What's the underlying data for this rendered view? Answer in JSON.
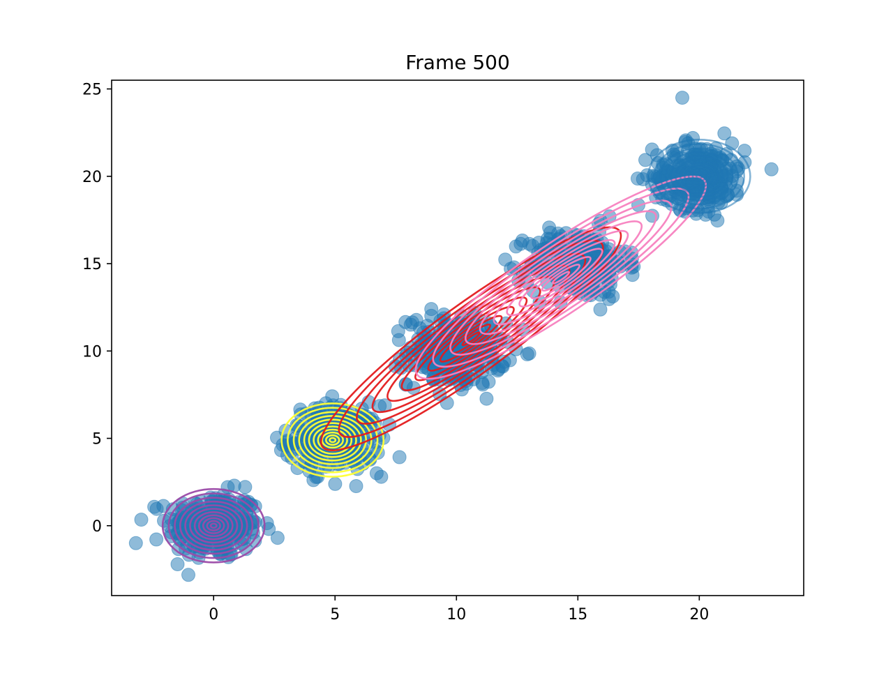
{
  "chart_data": {
    "type": "scatter",
    "title": "Frame 500",
    "xlabel": "",
    "ylabel": "",
    "xlim": [
      -4.2,
      24.3
    ],
    "ylim": [
      -4.0,
      25.5
    ],
    "xticks": [
      0,
      5,
      10,
      15,
      20
    ],
    "yticks": [
      0,
      5,
      10,
      15,
      20,
      25
    ],
    "grid": false,
    "legend": "none",
    "point_color": "#1f77b4",
    "point_alpha": 0.5,
    "clusters": [
      {
        "center": [
          0,
          0
        ],
        "spread": 0.95,
        "count": 260
      },
      {
        "center": [
          5,
          5
        ],
        "spread": 0.95,
        "count": 260
      },
      {
        "center": [
          10,
          10
        ],
        "spread": 1.0,
        "count": 260
      },
      {
        "center": [
          15,
          15
        ],
        "spread": 1.0,
        "count": 260
      },
      {
        "center": [
          20,
          20
        ],
        "spread": 0.95,
        "count": 260
      }
    ],
    "outliers": [
      [
        19.3,
        24.5
      ],
      [
        -3.2,
        -1.0
      ],
      [
        8.5,
        11.3
      ],
      [
        6.9,
        2.8
      ]
    ],
    "gaussian_components": [
      {
        "color": "#9b4aa8",
        "mean": [
          0,
          0
        ],
        "sd_major": 1.0,
        "sd_minor": 1.0,
        "angle_deg": 0
      },
      {
        "color": "#ffff33",
        "mean": [
          4.9,
          4.9
        ],
        "sd_major": 1.0,
        "sd_minor": 1.0,
        "angle_deg": 0
      },
      {
        "color": "#e41a1c",
        "mean": [
          10.6,
          10.7
        ],
        "sd_major": 3.6,
        "sd_minor": 0.95,
        "angle_deg": 36
      },
      {
        "color": "#f781bf",
        "mean": [
          14.3,
          14.2
        ],
        "sd_major": 3.4,
        "sd_minor": 0.95,
        "angle_deg": 34
      },
      {
        "color": "#1f77b4",
        "mean": [
          20,
          20
        ],
        "sd_major": 1.0,
        "sd_minor": 1.0,
        "angle_deg": 0
      }
    ]
  }
}
